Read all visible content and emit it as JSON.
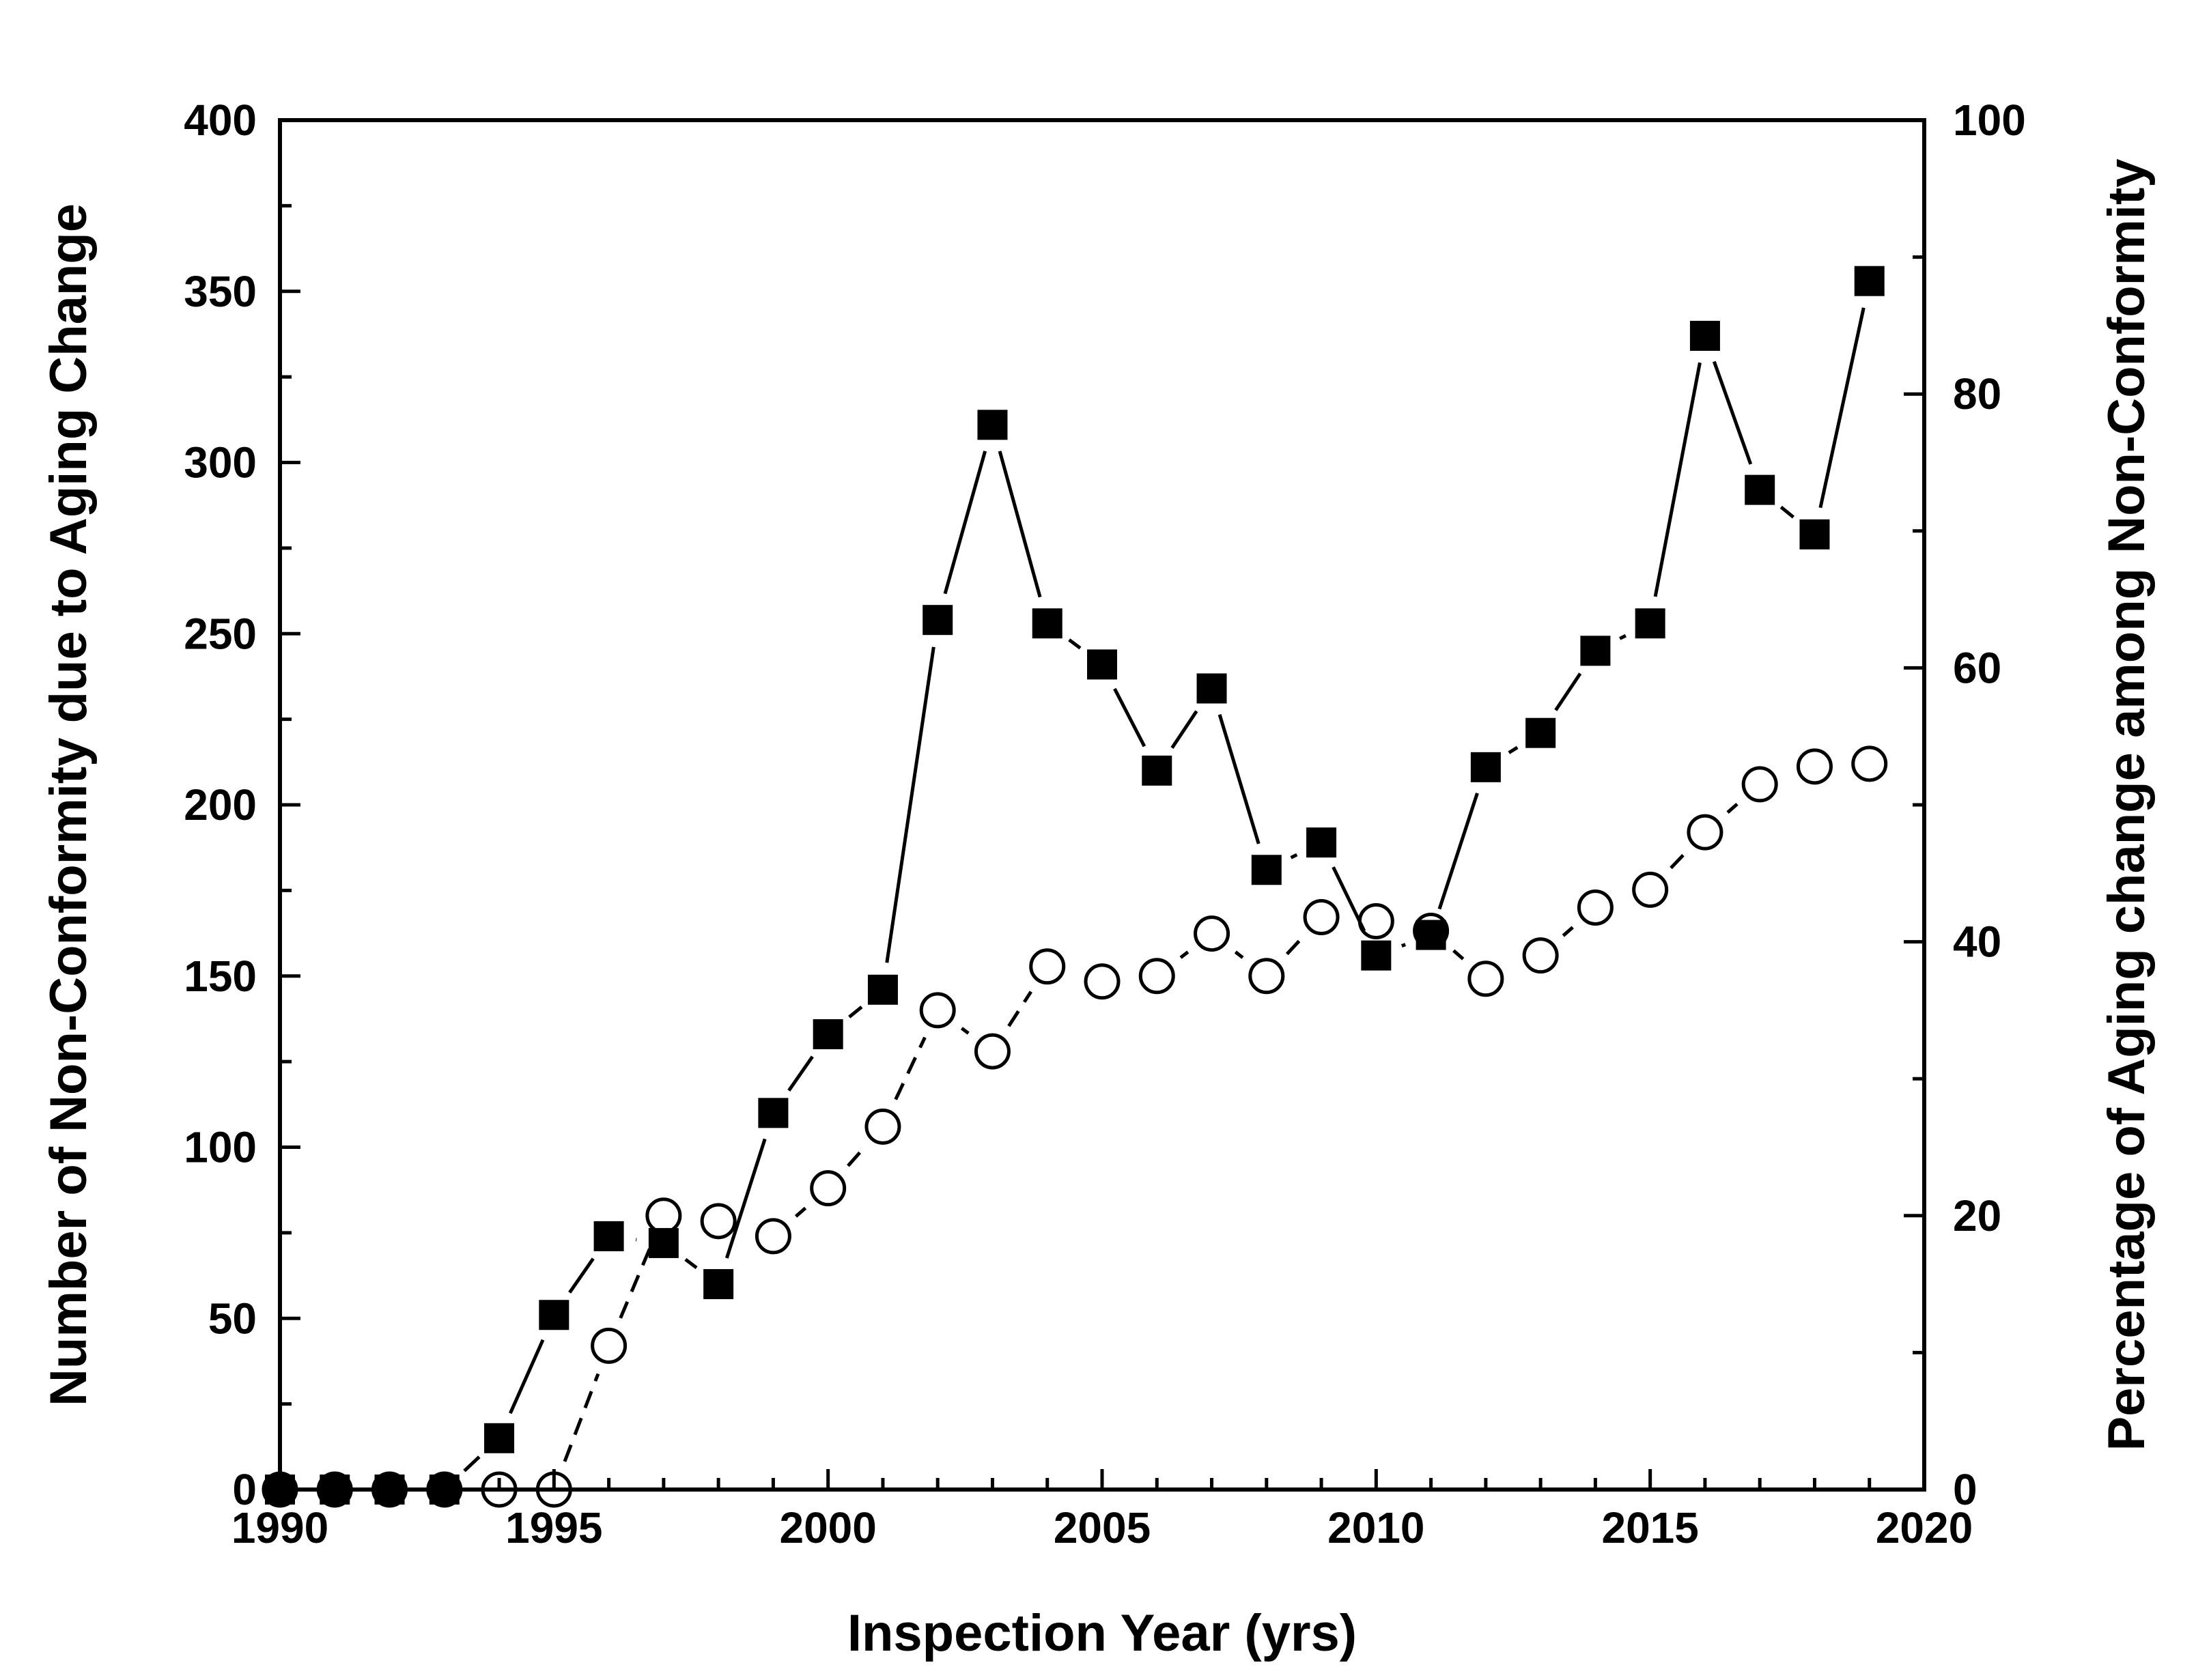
{
  "chart_data": {
    "type": "line",
    "xlabel": "Inspection Year (yrs)",
    "ylabel_left": "Number of Non-Conformity due to Aging Change",
    "ylabel_right": "Percentage of Aging change among Non-Conformity",
    "xlim": [
      1990,
      2020
    ],
    "ylim_left": [
      0,
      400
    ],
    "ylim_right": [
      0,
      100
    ],
    "x_ticks": [
      1990,
      1995,
      2000,
      2005,
      2010,
      2015,
      2020
    ],
    "y_left_ticks": [
      0,
      50,
      100,
      150,
      200,
      250,
      300,
      350,
      400
    ],
    "y_right_ticks": [
      0,
      20,
      40,
      60,
      80,
      100
    ],
    "grid": false,
    "series": [
      {
        "axis": "left",
        "marker": "filled-square",
        "line": "solid",
        "color": "#000000",
        "x": [
          1990,
          1991,
          1992,
          1993,
          1994,
          1995,
          1996,
          1997,
          1998,
          1999,
          2000,
          2001,
          2002,
          2003,
          2004,
          2005,
          2006,
          2007,
          2008,
          2009,
          2010,
          2011,
          2012,
          2013,
          2014,
          2015,
          2016,
          2017,
          2018,
          2019
        ],
        "values": [
          0,
          0,
          0,
          0,
          15,
          51,
          74,
          72,
          60,
          110,
          133,
          146,
          254,
          311,
          253,
          241,
          210,
          234,
          181,
          189,
          156,
          162,
          211,
          221,
          245,
          253,
          337,
          292,
          279,
          353
        ]
      },
      {
        "axis": "right",
        "marker": "open-circle",
        "line": "dashed",
        "color": "#000000",
        "x": [
          1990,
          1991,
          1992,
          1993,
          1994,
          1995,
          1996,
          1997,
          1998,
          1999,
          2000,
          2001,
          2002,
          2003,
          2004,
          2005,
          2006,
          2007,
          2008,
          2009,
          2010,
          2011,
          2012,
          2013,
          2014,
          2015,
          2016,
          2017,
          2018,
          2019
        ],
        "values": [
          0,
          0,
          0,
          0,
          0,
          0,
          10.5,
          20,
          19.6,
          18.5,
          22,
          26.5,
          35,
          32,
          38.2,
          37.1,
          37.5,
          40.6,
          37.5,
          41.8,
          41.5,
          40.8,
          37.3,
          39,
          42.5,
          43.8,
          48,
          51.5,
          52.8,
          53
        ]
      }
    ]
  }
}
